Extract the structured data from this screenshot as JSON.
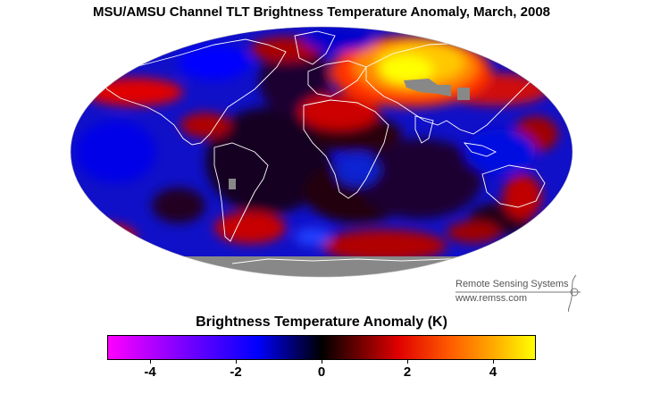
{
  "title": "MSU/AMSU Channel TLT Brightness Temperature Anomaly, March, 2008",
  "credit": {
    "organization": "Remote Sensing Systems",
    "url": "www.remss.com"
  },
  "colorbar": {
    "title": "Brightness Temperature Anomaly (K)",
    "range": [
      -5,
      5
    ],
    "ticks": [
      -4,
      -2,
      0,
      2,
      4
    ],
    "tick_labels": [
      "-4",
      "-2",
      "0",
      "2",
      "4"
    ],
    "colors": {
      "min": "#ff00ff",
      "cold": "#0000ff",
      "neutral": "#000000",
      "warm": "#ff0000",
      "hot": "#ff9900",
      "max": "#ffff00"
    }
  },
  "map": {
    "projection": "Mollweide",
    "missing_data_color": "#888888",
    "coastline_color": "#ffffff"
  }
}
